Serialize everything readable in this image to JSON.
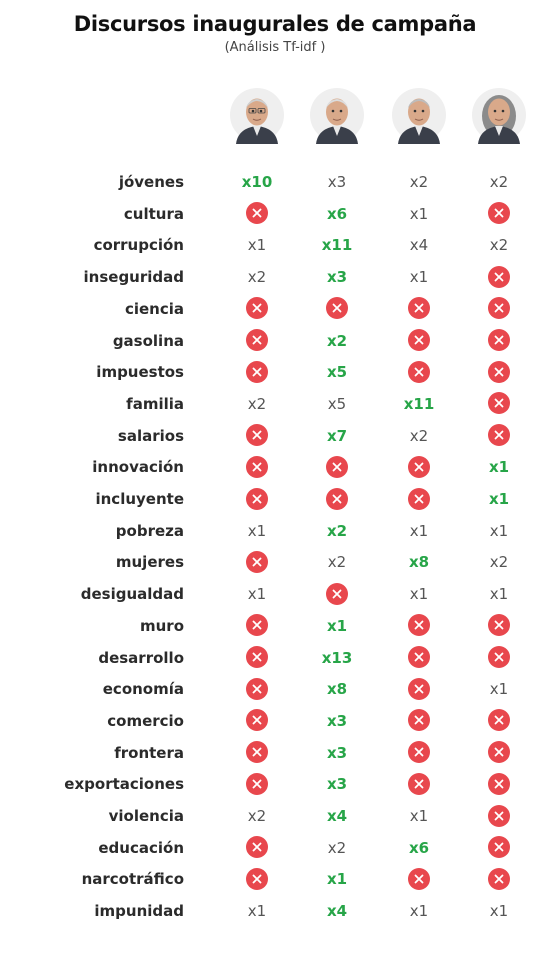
{
  "header": {
    "title": "Discursos inaugurales de campaña",
    "subtitle": "(Análisis Tf-idf )"
  },
  "candidates": [
    {
      "photo_icon": "candidate-1-portrait"
    },
    {
      "photo_icon": "candidate-2-portrait"
    },
    {
      "photo_icon": "candidate-3-portrait"
    },
    {
      "photo_icon": "candidate-4-portrait"
    }
  ],
  "colors": {
    "highlight": "#27a548",
    "absent": "#e8474d",
    "text": "#2b2b2b"
  },
  "chart_data": {
    "type": "table",
    "columns": [
      "",
      "",
      "",
      ""
    ],
    "rows": [
      {
        "term": "jóvenes",
        "counts": [
          10,
          3,
          2,
          2
        ],
        "highlight": 0
      },
      {
        "term": "cultura",
        "counts": [
          null,
          6,
          1,
          null
        ],
        "highlight": 1
      },
      {
        "term": "corrupción",
        "counts": [
          1,
          11,
          4,
          2
        ],
        "highlight": 1
      },
      {
        "term": "inseguridad",
        "counts": [
          2,
          3,
          1,
          null
        ],
        "highlight": 1
      },
      {
        "term": "ciencia",
        "counts": [
          null,
          null,
          null,
          null
        ],
        "highlight": null
      },
      {
        "term": "gasolina",
        "counts": [
          null,
          2,
          null,
          null
        ],
        "highlight": 1
      },
      {
        "term": "impuestos",
        "counts": [
          null,
          5,
          null,
          null
        ],
        "highlight": 1
      },
      {
        "term": "familia",
        "counts": [
          2,
          5,
          11,
          null
        ],
        "highlight": 2
      },
      {
        "term": "salarios",
        "counts": [
          null,
          7,
          2,
          null
        ],
        "highlight": 1
      },
      {
        "term": "innovación",
        "counts": [
          null,
          null,
          null,
          1
        ],
        "highlight": 3
      },
      {
        "term": "incluyente",
        "counts": [
          null,
          null,
          null,
          1
        ],
        "highlight": 3
      },
      {
        "term": "pobreza",
        "counts": [
          1,
          2,
          1,
          1
        ],
        "highlight": 1
      },
      {
        "term": "mujeres",
        "counts": [
          null,
          2,
          8,
          2
        ],
        "highlight": 2
      },
      {
        "term": "desigualdad",
        "counts": [
          1,
          null,
          1,
          1
        ],
        "highlight": null
      },
      {
        "term": "muro",
        "counts": [
          null,
          1,
          null,
          null
        ],
        "highlight": 1
      },
      {
        "term": "desarrollo",
        "counts": [
          null,
          13,
          null,
          null
        ],
        "highlight": 1
      },
      {
        "term": "economía",
        "counts": [
          null,
          8,
          null,
          1
        ],
        "highlight": 1
      },
      {
        "term": "comercio",
        "counts": [
          null,
          3,
          null,
          null
        ],
        "highlight": 1
      },
      {
        "term": "frontera",
        "counts": [
          null,
          3,
          null,
          null
        ],
        "highlight": 1
      },
      {
        "term": "exportaciones",
        "counts": [
          null,
          3,
          null,
          null
        ],
        "highlight": 1
      },
      {
        "term": "violencia",
        "counts": [
          2,
          4,
          1,
          null
        ],
        "highlight": 1
      },
      {
        "term": "educación",
        "counts": [
          null,
          2,
          6,
          null
        ],
        "highlight": 2
      },
      {
        "term": "narcotráfico",
        "counts": [
          null,
          1,
          null,
          null
        ],
        "highlight": 1
      },
      {
        "term": "impunidad",
        "counts": [
          1,
          4,
          1,
          1
        ],
        "highlight": 1
      }
    ]
  }
}
